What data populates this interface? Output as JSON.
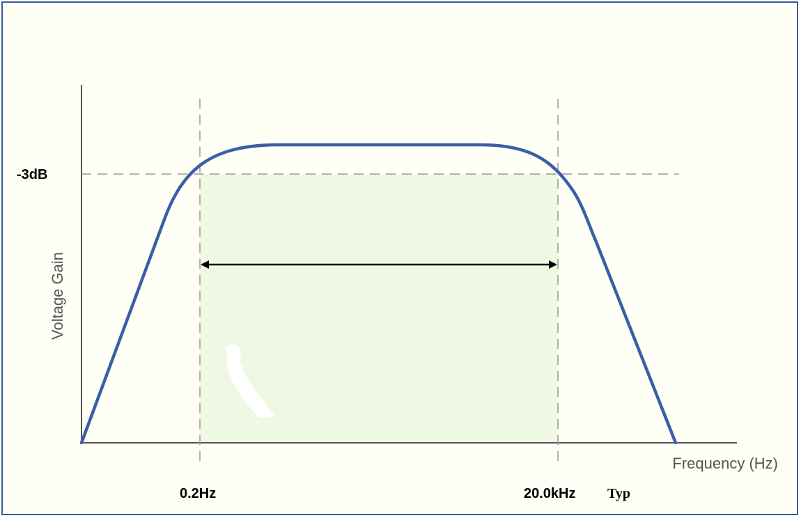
{
  "diagram": {
    "level_label": "-3dB",
    "y_axis_label": "Voltage Gain",
    "x_axis_label": "Frequency (Hz)",
    "low_cutoff_label": "0.2Hz",
    "high_cutoff_label": "20.0kHz",
    "typ_label": "Typ",
    "colors": {
      "curve": "#3a5fa6",
      "passband_fill": "#eef8e2",
      "guides": "#999999",
      "axes": "#555555",
      "arrow": "#000000",
      "border": "#3a5a9e"
    }
  }
}
